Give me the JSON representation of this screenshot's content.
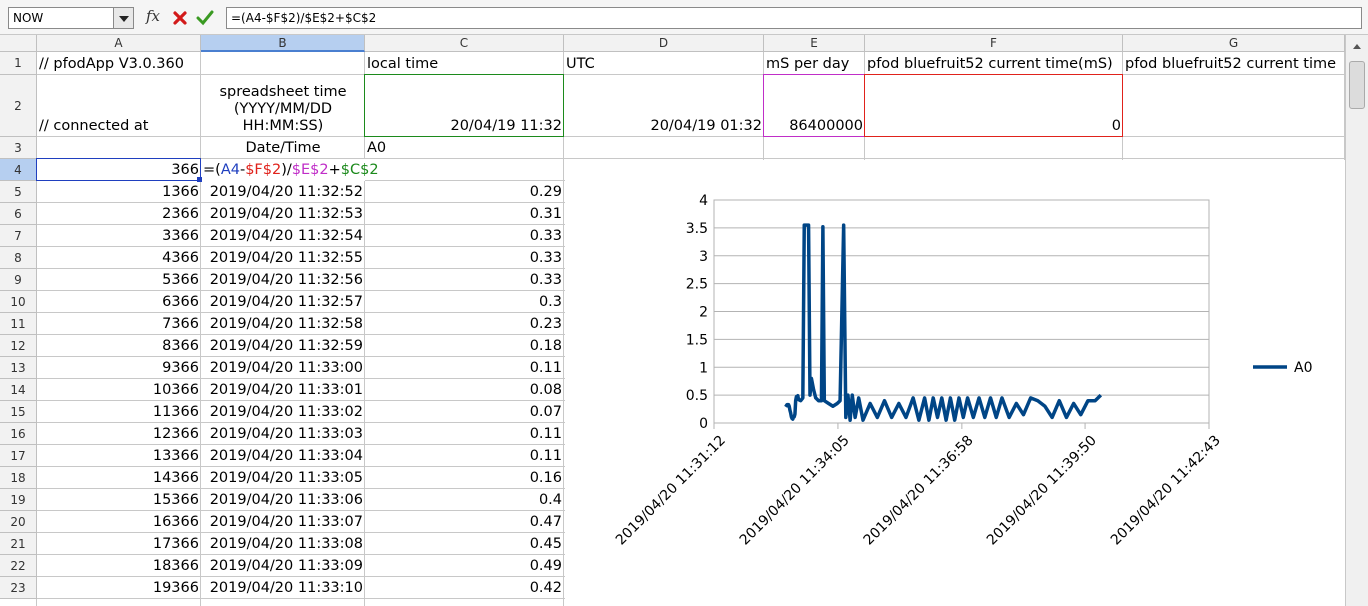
{
  "toolbar": {
    "name_box": "NOW",
    "function_button": "fx",
    "formula": "=(A4-$F$2)/$E$2+$C$2"
  },
  "sheet": {
    "columns": [
      "A",
      "B",
      "C",
      "D",
      "E",
      "F",
      "G"
    ],
    "rows": [
      {
        "number": "1",
        "cells": {
          "A": "// pfodApp V3.0.360",
          "C": "local time",
          "D": "UTC",
          "E": "mS per day",
          "F": "pfod bluefruit52 current time(mS)",
          "G": "pfod bluefruit52 current time"
        }
      },
      {
        "number": "2",
        "cells": {
          "A": "// connected at",
          "B": "spreadsheet time (YYYY/MM/DD HH:MM:SS)",
          "C": "20/04/19 11:32",
          "D": "20/04/19 01:32",
          "E": "86400000",
          "F": "0"
        }
      },
      {
        "number": "3",
        "cells": {
          "B": "Date/Time",
          "C": "A0"
        }
      },
      {
        "number": "4",
        "cells": {
          "A": "366"
        },
        "formula_parts": [
          "=(",
          "A4",
          "-",
          "$F$2",
          ")/",
          "$E$2",
          "+",
          "$C$2"
        ]
      },
      {
        "number": "5",
        "cells": {
          "A": "1366",
          "B": "2019/04/20 11:32:52",
          "C": "0.29"
        }
      },
      {
        "number": "6",
        "cells": {
          "A": "2366",
          "B": "2019/04/20 11:32:53",
          "C": "0.31"
        }
      },
      {
        "number": "7",
        "cells": {
          "A": "3366",
          "B": "2019/04/20 11:32:54",
          "C": "0.33"
        }
      },
      {
        "number": "8",
        "cells": {
          "A": "4366",
          "B": "2019/04/20 11:32:55",
          "C": "0.33"
        }
      },
      {
        "number": "9",
        "cells": {
          "A": "5366",
          "B": "2019/04/20 11:32:56",
          "C": "0.33"
        }
      },
      {
        "number": "10",
        "cells": {
          "A": "6366",
          "B": "2019/04/20 11:32:57",
          "C": "0.3"
        }
      },
      {
        "number": "11",
        "cells": {
          "A": "7366",
          "B": "2019/04/20 11:32:58",
          "C": "0.23"
        }
      },
      {
        "number": "12",
        "cells": {
          "A": "8366",
          "B": "2019/04/20 11:32:59",
          "C": "0.18"
        }
      },
      {
        "number": "13",
        "cells": {
          "A": "9366",
          "B": "2019/04/20 11:33:00",
          "C": "0.11"
        }
      },
      {
        "number": "14",
        "cells": {
          "A": "10366",
          "B": "2019/04/20 11:33:01",
          "C": "0.08"
        }
      },
      {
        "number": "15",
        "cells": {
          "A": "11366",
          "B": "2019/04/20 11:33:02",
          "C": "0.07"
        }
      },
      {
        "number": "16",
        "cells": {
          "A": "12366",
          "B": "2019/04/20 11:33:03",
          "C": "0.11"
        }
      },
      {
        "number": "17",
        "cells": {
          "A": "13366",
          "B": "2019/04/20 11:33:04",
          "C": "0.11"
        }
      },
      {
        "number": "18",
        "cells": {
          "A": "14366",
          "B": "2019/04/20 11:33:05",
          "C": "0.16"
        }
      },
      {
        "number": "19",
        "cells": {
          "A": "15366",
          "B": "2019/04/20 11:33:06",
          "C": "0.4"
        }
      },
      {
        "number": "20",
        "cells": {
          "A": "16366",
          "B": "2019/04/20 11:33:07",
          "C": "0.47"
        }
      },
      {
        "number": "21",
        "cells": {
          "A": "17366",
          "B": "2019/04/20 11:33:08",
          "C": "0.45"
        }
      },
      {
        "number": "22",
        "cells": {
          "A": "18366",
          "B": "2019/04/20 11:33:09",
          "C": "0.49"
        }
      },
      {
        "number": "23",
        "cells": {
          "A": "19366",
          "B": "2019/04/20 11:33:10",
          "C": "0.42"
        }
      }
    ]
  },
  "chart_data": {
    "type": "line",
    "x": [
      "2019/04/20 11:32:52",
      "2019/04/20 11:32:53",
      "2019/04/20 11:32:54",
      "2019/04/20 11:32:55",
      "2019/04/20 11:32:56",
      "2019/04/20 11:32:57",
      "2019/04/20 11:32:58",
      "2019/04/20 11:32:59",
      "2019/04/20 11:33:00",
      "2019/04/20 11:33:01",
      "2019/04/20 11:33:02",
      "2019/04/20 11:33:03",
      "2019/04/20 11:33:04",
      "2019/04/20 11:33:05",
      "2019/04/20 11:33:06",
      "2019/04/20 11:33:07",
      "2019/04/20 11:33:08",
      "2019/04/20 11:33:09",
      "2019/04/20 11:33:10",
      "2019/04/20 11:33:13",
      "2019/04/20 11:33:16",
      "2019/04/20 11:33:18",
      "2019/04/20 11:33:24",
      "2019/04/20 11:33:26",
      "2019/04/20 11:33:28",
      "2019/04/20 11:33:31",
      "2019/04/20 11:33:34",
      "2019/04/20 11:33:38",
      "2019/04/20 11:33:42",
      "2019/04/20 11:33:44",
      "2019/04/20 11:33:46",
      "2019/04/20 11:33:52",
      "2019/04/20 11:33:58",
      "2019/04/20 11:34:04",
      "2019/04/20 11:34:08",
      "2019/04/20 11:34:13",
      "2019/04/20 11:34:16",
      "2019/04/20 11:34:19",
      "2019/04/20 11:34:22",
      "2019/04/20 11:34:25",
      "2019/04/20 11:34:29",
      "2019/04/20 11:34:34",
      "2019/04/20 11:34:40",
      "2019/04/20 11:34:50",
      "2019/04/20 11:35:00",
      "2019/04/20 11:35:10",
      "2019/04/20 11:35:20",
      "2019/04/20 11:35:30",
      "2019/04/20 11:35:40",
      "2019/04/20 11:35:50",
      "2019/04/20 11:35:58",
      "2019/04/20 11:36:06",
      "2019/04/20 11:36:12",
      "2019/04/20 11:36:18",
      "2019/04/20 11:36:24",
      "2019/04/20 11:36:30",
      "2019/04/20 11:36:36",
      "2019/04/20 11:36:42",
      "2019/04/20 11:36:48",
      "2019/04/20 11:36:54",
      "2019/04/20 11:37:00",
      "2019/04/20 11:37:06",
      "2019/04/20 11:37:14",
      "2019/04/20 11:37:22",
      "2019/04/20 11:37:30",
      "2019/04/20 11:37:38",
      "2019/04/20 11:37:46",
      "2019/04/20 11:37:54",
      "2019/04/20 11:38:04",
      "2019/04/20 11:38:14",
      "2019/04/20 11:38:24",
      "2019/04/20 11:38:34",
      "2019/04/20 11:38:44",
      "2019/04/20 11:38:54",
      "2019/04/20 11:39:04",
      "2019/04/20 11:39:14",
      "2019/04/20 11:39:24",
      "2019/04/20 11:39:34",
      "2019/04/20 11:39:44",
      "2019/04/20 11:39:54",
      "2019/04/20 11:40:04",
      "2019/04/20 11:40:12"
    ],
    "series": [
      {
        "name": "A0",
        "color": "#004586",
        "values": [
          0.29,
          0.31,
          0.33,
          0.33,
          0.33,
          0.3,
          0.23,
          0.18,
          0.11,
          0.08,
          0.07,
          0.11,
          0.11,
          0.16,
          0.4,
          0.47,
          0.45,
          0.49,
          0.42,
          0.4,
          0.45,
          3.55,
          3.55,
          0.5,
          0.8,
          0.6,
          0.45,
          0.4,
          0.4,
          3.52,
          0.4,
          0.35,
          0.3,
          0.35,
          0.4,
          3.55,
          0.1,
          0.5,
          0.05,
          0.5,
          0.1,
          0.45,
          0.05,
          0.35,
          0.1,
          0.4,
          0.1,
          0.35,
          0.1,
          0.45,
          0.05,
          0.45,
          0.05,
          0.45,
          0.1,
          0.45,
          0.05,
          0.45,
          0.05,
          0.45,
          0.1,
          0.45,
          0.1,
          0.45,
          0.1,
          0.45,
          0.1,
          0.45,
          0.1,
          0.35,
          0.15,
          0.45,
          0.4,
          0.3,
          0.1,
          0.4,
          0.1,
          0.35,
          0.15,
          0.4,
          0.4,
          0.5
        ]
      }
    ],
    "xlim": [
      "2019/04/20 11:31:12",
      "2019/04/20 11:42:43"
    ],
    "xticks": [
      "2019/04/20 11:31:12",
      "2019/04/20 11:34:05",
      "2019/04/20 11:36:58",
      "2019/04/20 11:39:50",
      "2019/04/20 11:42:43"
    ],
    "ylim": [
      0,
      4
    ],
    "yticks": [
      0,
      0.5,
      1,
      1.5,
      2,
      2.5,
      3,
      3.5,
      4
    ],
    "grid": true,
    "legend": "right"
  }
}
